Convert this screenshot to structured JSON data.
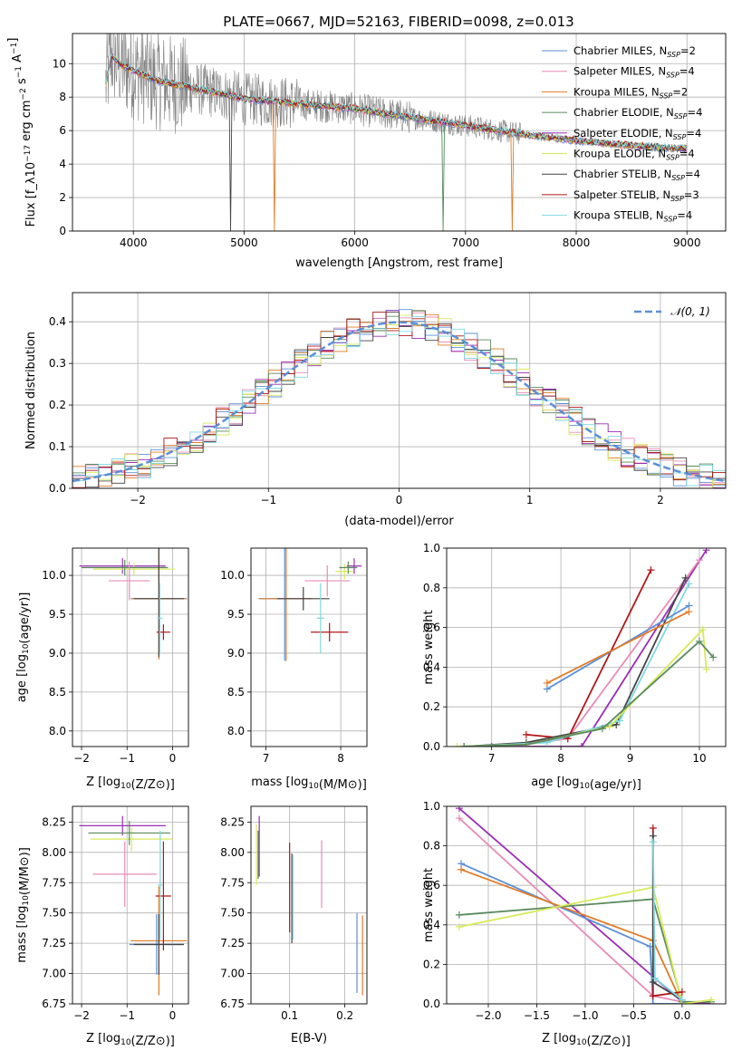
{
  "figure": {
    "title": "PLATE=0667, MJD=52163, FIBERID=0098, z=0.013"
  },
  "colors": {
    "Chabrier MILES": "#5b8fd6",
    "Salpeter MILES": "#e88cb6",
    "Kroupa MILES": "#e07b25",
    "Chabrier ELODIE": "#5a8a5e",
    "Salpeter ELODIE": "#9a2db5",
    "Kroupa ELODIE": "#d7ea5a",
    "Chabrier STELIB": "#444444",
    "Salpeter STELIB": "#b01818",
    "Kroupa STELIB": "#7fd8e0",
    "data": "#808080",
    "normal": "#5b8fd6"
  },
  "chart_data": [
    {
      "id": "spectrum",
      "type": "line",
      "title": "PLATE=0667, MJD=52163, FIBERID=0098, z=0.013",
      "xlabel": "wavelength [Angstrom, rest frame]",
      "ylabel": "Flux [f_λ10^-17 erg cm^-2 s^-1 A^-1]",
      "xlim": [
        3450,
        9350
      ],
      "ylim": [
        0,
        11.8
      ],
      "xticks": [
        4000,
        5000,
        6000,
        7000,
        8000,
        9000
      ],
      "yticks": [
        0,
        2,
        4,
        6,
        8,
        10
      ],
      "legend_position": "top-right",
      "legend": [
        {
          "label": "Chabrier MILES, N",
          "sub": "SSP",
          "tail": "=2"
        },
        {
          "label": "Salpeter MILES, N",
          "sub": "SSP",
          "tail": "=4"
        },
        {
          "label": "Kroupa MILES, N",
          "sub": "SSP",
          "tail": "=2"
        },
        {
          "label": "Chabrier ELODIE, N",
          "sub": "SSP",
          "tail": "=4"
        },
        {
          "label": "Salpeter ELODIE, N",
          "sub": "SSP",
          "tail": "=4"
        },
        {
          "label": "Kroupa ELODIE, N",
          "sub": "SSP",
          "tail": "=4"
        },
        {
          "label": "Chabrier STELIB, N",
          "sub": "SSP",
          "tail": "=4"
        },
        {
          "label": "Salpeter STELIB, N",
          "sub": "SSP",
          "tail": "=3"
        },
        {
          "label": "Kroupa STELIB, N",
          "sub": "SSP",
          "tail": "=4"
        }
      ],
      "model_continuum": {
        "x": [
          3750,
          3800,
          3900,
          4000,
          4200,
          4500,
          4800,
          5000,
          5500,
          6000,
          6500,
          7000,
          7500,
          8000,
          8500,
          9000
        ],
        "y": [
          8.7,
          10.5,
          9.9,
          9.6,
          9.0,
          8.6,
          8.2,
          7.9,
          7.6,
          7.3,
          6.8,
          6.3,
          5.8,
          5.4,
          5.1,
          4.9
        ]
      }
    },
    {
      "id": "residuals",
      "type": "histogram",
      "xlabel": "(data-model)/error",
      "ylabel": "Normed distribution",
      "xlim": [
        -2.5,
        2.5
      ],
      "ylim": [
        0,
        0.47
      ],
      "xticks": [
        -2,
        -1,
        0,
        1,
        2
      ],
      "yticks": [
        0.0,
        0.1,
        0.2,
        0.3,
        0.4
      ],
      "legend_position": "top-right",
      "legend": [
        {
          "label": "𝒩(0, 1)"
        }
      ],
      "bin_width": 0.1
    },
    {
      "id": "age_vs_Z",
      "type": "errorbar",
      "xlabel": "Z [log10(Z/Z⊙)]",
      "ylabel": "age  [log10(age/yr)]",
      "xlim": [
        -2.2,
        0.35
      ],
      "ylim": [
        7.8,
        10.35
      ],
      "xticks": [
        -2,
        -1,
        0
      ],
      "yticks": [
        8.0,
        8.5,
        9.0,
        9.5,
        10.0
      ],
      "points": [
        {
          "model": "Salpeter ELODIE",
          "x": -1.1,
          "xerr": 0.95,
          "y": 10.12,
          "yerr": 0.1
        },
        {
          "model": "Kroupa ELODIE",
          "x": -0.85,
          "xerr": 0.9,
          "y": 10.08,
          "yerr": 0.08
        },
        {
          "model": "Chabrier ELODIE",
          "x": -1.05,
          "xerr": 0.95,
          "y": 10.1,
          "yerr": 0.1
        },
        {
          "model": "Salpeter MILES",
          "x": -0.95,
          "xerr": 0.45,
          "y": 9.93,
          "yerr": 0.25
        },
        {
          "model": "Chabrier MILES",
          "x": -0.3,
          "xerr": 0.62,
          "y": 9.7,
          "yerr": 0.75
        },
        {
          "model": "Kroupa MILES",
          "x": -0.3,
          "xerr": 0.6,
          "y": 9.7,
          "yerr": 0.78
        },
        {
          "model": "Chabrier STELIB",
          "x": -0.3,
          "xerr": 0.55,
          "y": 9.7,
          "yerr": 0.75
        },
        {
          "model": "Salpeter STELIB",
          "x": -0.2,
          "xerr": 0.15,
          "y": 9.27,
          "yerr": 0.1
        },
        {
          "model": "Kroupa STELIB",
          "x": -0.28,
          "xerr": 0.06,
          "y": 9.45,
          "yerr": 0.45
        }
      ]
    },
    {
      "id": "age_vs_mass",
      "type": "errorbar",
      "xlabel": "mass [log10(M/M⊙)]",
      "xlim": [
        6.8,
        8.35
      ],
      "ylim": [
        7.8,
        10.35
      ],
      "xticks": [
        7,
        8
      ],
      "yticks": [
        8.0,
        8.5,
        9.0,
        9.5,
        10.0
      ],
      "points": [
        {
          "model": "Salpeter ELODIE",
          "x": 8.18,
          "xerr": 0.1,
          "y": 10.12,
          "yerr": 0.1
        },
        {
          "model": "Kroupa ELODIE",
          "x": 8.05,
          "xerr": 0.12,
          "y": 10.05,
          "yerr": 0.1
        },
        {
          "model": "Chabrier ELODIE",
          "x": 8.1,
          "xerr": 0.12,
          "y": 10.1,
          "yerr": 0.08
        },
        {
          "model": "Salpeter MILES",
          "x": 7.82,
          "xerr": 0.3,
          "y": 9.93,
          "yerr": 0.2
        },
        {
          "model": "Chabrier MILES",
          "x": 7.25,
          "xerr": 0.35,
          "y": 9.7,
          "yerr": 0.8
        },
        {
          "model": "Kroupa MILES",
          "x": 7.27,
          "xerr": 0.35,
          "y": 9.7,
          "yerr": 0.8
        },
        {
          "model": "Chabrier STELIB",
          "x": 7.5,
          "xerr": 0.35,
          "y": 9.7,
          "yerr": 0.15
        },
        {
          "model": "Salpeter STELIB",
          "x": 7.85,
          "xerr": 0.25,
          "y": 9.27,
          "yerr": 0.12
        },
        {
          "model": "Kroupa STELIB",
          "x": 7.73,
          "xerr": 0.05,
          "y": 9.45,
          "yerr": 0.45
        }
      ]
    },
    {
      "id": "weight_vs_age",
      "type": "line",
      "xlabel": "age  [log10(age/yr)]",
      "ylabel": "mass weight",
      "xlim": [
        6.35,
        10.38
      ],
      "ylim": [
        0,
        1
      ],
      "xticks": [
        7,
        8,
        9,
        10
      ],
      "yticks": [
        0.0,
        0.2,
        0.4,
        0.6,
        0.8,
        1.0
      ],
      "series": [
        {
          "model": "Salpeter ELODIE",
          "x": [
            6.6,
            7.0,
            8.3,
            10.1
          ],
          "y": [
            0.0,
            0.0,
            0.0,
            0.99
          ]
        },
        {
          "model": "Salpeter MILES",
          "x": [
            6.6,
            7.5,
            8.1,
            10.0
          ],
          "y": [
            0.0,
            0.01,
            0.04,
            0.94
          ]
        },
        {
          "model": "Salpeter STELIB",
          "x": [
            7.5,
            8.1,
            9.3
          ],
          "y": [
            0.06,
            0.04,
            0.89
          ]
        },
        {
          "model": "Chabrier STELIB",
          "x": [
            6.6,
            7.5,
            8.8,
            9.8
          ],
          "y": [
            0.0,
            0.02,
            0.11,
            0.85
          ]
        },
        {
          "model": "Kroupa STELIB",
          "x": [
            6.6,
            7.8,
            8.85,
            9.85
          ],
          "y": [
            0.0,
            0.02,
            0.13,
            0.82
          ]
        },
        {
          "model": "Chabrier MILES",
          "x": [
            7.8,
            9.85
          ],
          "y": [
            0.29,
            0.71
          ]
        },
        {
          "model": "Kroupa MILES",
          "x": [
            7.8,
            9.85
          ],
          "y": [
            0.32,
            0.68
          ]
        },
        {
          "model": "Kroupa ELODIE",
          "x": [
            6.5,
            7.5,
            8.7,
            10.05,
            10.1
          ],
          "y": [
            0.0,
            0.01,
            0.1,
            0.59,
            0.39
          ]
        },
        {
          "model": "Chabrier ELODIE",
          "x": [
            6.6,
            7.5,
            8.6,
            10.0,
            10.2
          ],
          "y": [
            0.0,
            0.01,
            0.09,
            0.53,
            0.45
          ]
        }
      ]
    },
    {
      "id": "mass_vs_Z",
      "type": "errorbar",
      "xlabel": "Z [log10(Z/Z⊙)]",
      "ylabel": "mass [log10(M/M⊙)]",
      "xlim": [
        -2.2,
        0.35
      ],
      "ylim": [
        6.75,
        8.38
      ],
      "xticks": [
        -2,
        -1,
        0
      ],
      "yticks": [
        6.75,
        7.0,
        7.25,
        7.5,
        7.75,
        8.0,
        8.25
      ],
      "points": [
        {
          "model": "Salpeter ELODIE",
          "x": -1.1,
          "xerr": 0.95,
          "y": 8.22,
          "yerr": 0.08
        },
        {
          "model": "Kroupa ELODIE",
          "x": -0.9,
          "xerr": 0.9,
          "y": 8.11,
          "yerr": 0.1
        },
        {
          "model": "Chabrier ELODIE",
          "x": -0.95,
          "xerr": 0.9,
          "y": 8.16,
          "yerr": 0.1
        },
        {
          "model": "Salpeter MILES",
          "x": -1.05,
          "xerr": 0.7,
          "y": 7.82,
          "yerr": 0.27
        },
        {
          "model": "Chabrier MILES",
          "x": -0.35,
          "xerr": 0.6,
          "y": 7.24,
          "yerr": 0.25
        },
        {
          "model": "Kroupa MILES",
          "x": -0.3,
          "xerr": 0.62,
          "y": 7.27,
          "yerr": 0.45
        },
        {
          "model": "Chabrier STELIB",
          "x": -0.3,
          "xerr": 0.55,
          "y": 7.24,
          "yerr": 0.25
        },
        {
          "model": "Salpeter STELIB",
          "x": -0.2,
          "xerr": 0.17,
          "y": 7.64,
          "yerr": 0.45
        },
        {
          "model": "Kroupa STELIB",
          "x": -0.27,
          "xerr": 0.05,
          "y": 7.73,
          "yerr": 0.45
        }
      ]
    },
    {
      "id": "mass_vs_ebv",
      "type": "errorbar",
      "xlabel": "E(B-V)",
      "xlim": [
        0.03,
        0.24
      ],
      "ylim": [
        6.75,
        8.38
      ],
      "xticks": [
        0.1,
        0.2
      ],
      "yticks": [
        6.75,
        7.0,
        7.25,
        7.5,
        7.75,
        8.0,
        8.25
      ],
      "points": [
        {
          "model": "Salpeter ELODIE",
          "x": 0.045,
          "xerr": 0.0,
          "y": 8.05,
          "yerr": 0.25
        },
        {
          "model": "Kroupa ELODIE",
          "x": 0.04,
          "xerr": 0.0,
          "y": 7.98,
          "yerr": 0.25
        },
        {
          "model": "Chabrier ELODIE",
          "x": 0.043,
          "xerr": 0.0,
          "y": 7.98,
          "yerr": 0.2
        },
        {
          "model": "Salpeter STELIB",
          "x": 0.1,
          "xerr": 0.0,
          "y": 7.71,
          "yerr": 0.37
        },
        {
          "model": "Chabrier STELIB",
          "x": 0.104,
          "xerr": 0.0,
          "y": 7.62,
          "yerr": 0.37
        },
        {
          "model": "Kroupa STELIB",
          "x": 0.106,
          "xerr": 0.0,
          "y": 7.63,
          "yerr": 0.35
        },
        {
          "model": "Salpeter MILES",
          "x": 0.158,
          "xerr": 0.0,
          "y": 7.82,
          "yerr": 0.28
        },
        {
          "model": "Chabrier MILES",
          "x": 0.222,
          "xerr": 0.0,
          "y": 7.17,
          "yerr": 0.33
        },
        {
          "model": "Kroupa MILES",
          "x": 0.232,
          "xerr": 0.0,
          "y": 7.15,
          "yerr": 0.33
        }
      ]
    },
    {
      "id": "weight_vs_Z",
      "type": "line",
      "xlabel": "Z [log10(Z/Z⊙)]",
      "ylabel": "mass weight",
      "xlim": [
        -2.43,
        0.45
      ],
      "ylim": [
        0,
        1
      ],
      "xticks": [
        -2.0,
        -1.5,
        -1.0,
        -0.5,
        0.0
      ],
      "yticks": [
        0.0,
        0.2,
        0.4,
        0.6,
        0.8,
        1.0
      ],
      "series": [
        {
          "model": "Salpeter ELODIE",
          "x": [
            -2.3,
            0.0,
            0.3
          ],
          "y": [
            0.99,
            0.01,
            0.0
          ]
        },
        {
          "model": "Salpeter MILES",
          "x": [
            -2.3,
            -0.3,
            0.0
          ],
          "y": [
            0.94,
            0.04,
            0.01
          ]
        },
        {
          "model": "Chabrier MILES",
          "x": [
            -2.28,
            -0.33,
            -0.3,
            0.0
          ],
          "y": [
            0.71,
            0.29,
            0.0,
            0.0
          ]
        },
        {
          "model": "Kroupa MILES",
          "x": [
            -2.28,
            -0.3,
            0.0
          ],
          "y": [
            0.68,
            0.32,
            0.0
          ]
        },
        {
          "model": "Chabrier ELODIE",
          "x": [
            -2.3,
            -0.3,
            0.0,
            0.3
          ],
          "y": [
            0.45,
            0.53,
            0.01,
            0.01
          ]
        },
        {
          "model": "Kroupa ELODIE",
          "x": [
            -2.3,
            -0.3,
            0.0,
            0.3
          ],
          "y": [
            0.39,
            0.59,
            0.0,
            0.02
          ]
        },
        {
          "model": "Salpeter STELIB",
          "x": [
            -0.3,
            -0.3,
            0.0
          ],
          "y": [
            0.89,
            0.04,
            0.06
          ]
        },
        {
          "model": "Chabrier STELIB",
          "x": [
            -0.3,
            -0.3,
            0.0
          ],
          "y": [
            0.85,
            0.11,
            0.02
          ]
        },
        {
          "model": "Kroupa STELIB",
          "x": [
            -0.3,
            -0.28,
            0.0
          ],
          "y": [
            0.82,
            0.13,
            0.02
          ]
        }
      ]
    }
  ]
}
